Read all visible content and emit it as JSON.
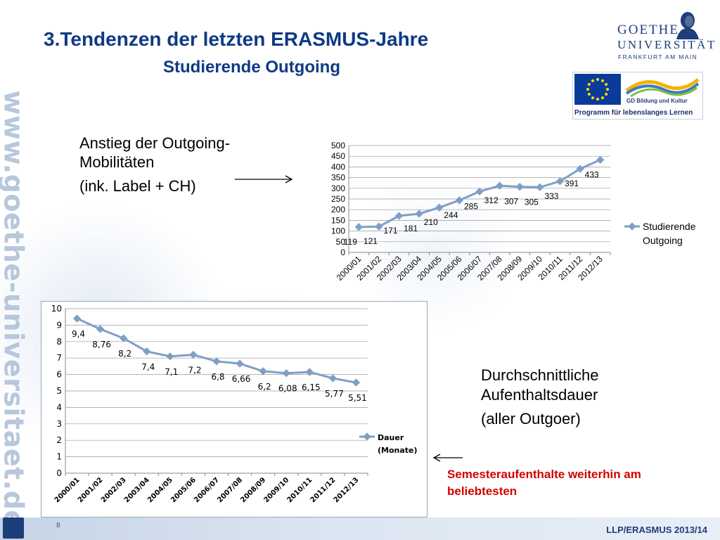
{
  "slide": {
    "title": "3.Tendenzen der letzten ERASMUS-Jahre",
    "subtitle": "Studierende Outgoing",
    "side_url": "www.goethe-universitaet.de",
    "page_number": "8",
    "footer": "LLP/ERASMUS 2013/14"
  },
  "logos": {
    "goethe_line1": "GOETHE",
    "goethe_line2": "UNIVERSITÄT",
    "goethe_line3": "FRANKFURT AM MAIN",
    "llp_gd": "GD Bildung und Kultur",
    "llp_program": "Programm für lebenslanges Lernen"
  },
  "labels": {
    "left_l1": "Anstieg der Outgoing-",
    "left_l2": "Mobilitäten",
    "left_l3": "(ink. Label + CH)",
    "right_l1": "Durchschnittliche",
    "right_l2": "Aufenthaltsdauer",
    "right_l3": "(aller Outgoer)",
    "red_l1": "Semesteraufenthalte weiterhin am",
    "red_l2": "beliebtesten"
  },
  "colors": {
    "title": "#0f3a85",
    "series": "#7f9fc6",
    "red_note": "#d40000"
  },
  "chart_data": [
    {
      "type": "line",
      "categories": [
        "2000/01",
        "2001/02",
        "2002/03",
        "2003/04",
        "2004/05",
        "2005/06",
        "2006/07",
        "2007/08",
        "2008/09",
        "2009/10",
        "2010/11",
        "2011/12",
        "2012/13"
      ],
      "series": [
        {
          "name": "Studierende Outgoing",
          "values": [
            119,
            121,
            171,
            181,
            210,
            244,
            285,
            312,
            307,
            305,
            333,
            391,
            433
          ],
          "value_labels": [
            "119",
            "121",
            "171",
            "181",
            "210",
            "244",
            "285",
            "312",
            "307",
            "305",
            "333",
            "391",
            "433"
          ]
        }
      ],
      "yticks": [
        "0",
        "50",
        "100",
        "150",
        "200",
        "250",
        "300",
        "350",
        "400",
        "450",
        "500"
      ],
      "ylim": [
        0,
        500
      ],
      "grid": true,
      "legend": "right"
    },
    {
      "type": "line",
      "categories": [
        "2000/01",
        "2001/02",
        "2002/03",
        "2003/04",
        "2004/05",
        "2005/06",
        "2006/07",
        "2007/08",
        "2008/09",
        "2009/10",
        "2010/11",
        "2011/12",
        "2012/13"
      ],
      "series": [
        {
          "name": "Dauer (Monate)",
          "values": [
            9.4,
            8.76,
            8.2,
            7.4,
            7.1,
            7.2,
            6.8,
            6.66,
            6.2,
            6.08,
            6.15,
            5.77,
            5.51
          ],
          "value_labels": [
            "9,4",
            "8,76",
            "8,2",
            "7,4",
            "7,1",
            "7,2",
            "6,8",
            "6,66",
            "6,2",
            "6,08",
            "6,15",
            "5,77",
            "5,51"
          ]
        }
      ],
      "legend_lines": [
        "Dauer",
        "(Monate)"
      ],
      "yticks": [
        "0",
        "1",
        "2",
        "3",
        "4",
        "5",
        "6",
        "7",
        "8",
        "9",
        "10"
      ],
      "ylim": [
        0,
        10
      ],
      "grid": true,
      "legend": "right"
    }
  ]
}
